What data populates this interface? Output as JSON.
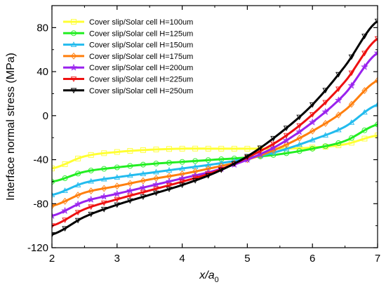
{
  "chart_data": {
    "type": "line",
    "title": "",
    "xlabel_main": "x/a",
    "xlabel_sub": "0",
    "ylabel": "Interface normal stress (MPa)",
    "xlim": [
      2,
      7
    ],
    "ylim": [
      -120,
      100
    ],
    "x_ticks": [
      2,
      3,
      4,
      5,
      6,
      7
    ],
    "y_ticks": [
      -120,
      -80,
      -40,
      0,
      40,
      80
    ],
    "x_tick_labels": [
      "2",
      "3",
      "4",
      "5",
      "6",
      "7"
    ],
    "y_tick_labels": [
      "-120",
      "-80",
      "-40",
      "0",
      "40",
      "80"
    ],
    "grid": false,
    "legend_position": "top-left",
    "x": [
      2.0,
      2.5,
      3.0,
      3.5,
      4.0,
      4.5,
      5.0,
      5.5,
      6.0,
      6.5,
      7.0
    ],
    "series": [
      {
        "name": "Cover slip/Solar cell H=100um",
        "color": "#ffff33",
        "marker": "square",
        "values": [
          -48,
          -37,
          -33,
          -31,
          -30,
          -30,
          -30,
          -30,
          -29,
          -26,
          -18
        ]
      },
      {
        "name": "Cover slip/Solar cell H=125um",
        "color": "#22ee22",
        "marker": "circle",
        "values": [
          -60,
          -51,
          -47,
          -44,
          -42,
          -40,
          -38,
          -35,
          -30,
          -23,
          -8
        ]
      },
      {
        "name": "Cover slip/Solar cell H=150um",
        "color": "#22bbee",
        "marker": "triangle-up",
        "values": [
          -72,
          -61,
          -56,
          -52,
          -48,
          -44,
          -39,
          -32,
          -22,
          -10,
          10
        ]
      },
      {
        "name": "Cover slip/Solar cell H=175um",
        "color": "#ff7f0e",
        "marker": "diamond",
        "values": [
          -82,
          -70,
          -64,
          -58,
          -53,
          -47,
          -40,
          -29,
          -14,
          5,
          32
        ]
      },
      {
        "name": "Cover slip/Solar cell H=200um",
        "color": "#9922ee",
        "marker": "star",
        "values": [
          -91,
          -78,
          -71,
          -64,
          -57,
          -50,
          -40,
          -26,
          -6,
          20,
          57
        ]
      },
      {
        "name": "Cover slip/Solar cell H=225um",
        "color": "#ee1111",
        "marker": "triangle-down-open",
        "values": [
          -100,
          -85,
          -76,
          -68,
          -60,
          -51,
          -38,
          -22,
          1,
          31,
          70
        ]
      },
      {
        "name": "Cover slip/Solar cell H=250um",
        "color": "#000000",
        "marker": "triangle-down",
        "values": [
          -108,
          -92,
          -81,
          -72,
          -63,
          -52,
          -37,
          -16,
          10,
          45,
          86
        ]
      }
    ]
  }
}
